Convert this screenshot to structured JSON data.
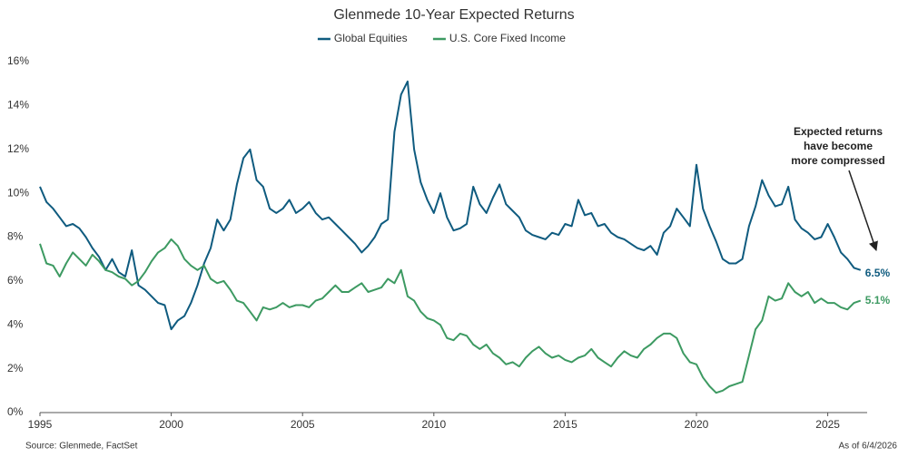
{
  "chart_data": {
    "type": "line",
    "title": "Glenmede 10-Year Expected Returns",
    "source": "Source: Glenmede, FactSet",
    "date_note": "As of 6/4/2026",
    "annotation": [
      "Expected returns",
      "have become",
      "more compressed"
    ],
    "x": [
      1995,
      1995.25,
      1995.5,
      1995.75,
      1996,
      1996.25,
      1996.5,
      1996.75,
      1997,
      1997.25,
      1997.5,
      1997.75,
      1998,
      1998.25,
      1998.5,
      1998.75,
      1999,
      1999.25,
      1999.5,
      1999.75,
      2000,
      2000.25,
      2000.5,
      2000.75,
      2001,
      2001.25,
      2001.5,
      2001.75,
      2002,
      2002.25,
      2002.5,
      2002.75,
      2003,
      2003.25,
      2003.5,
      2003.75,
      2004,
      2004.25,
      2004.5,
      2004.75,
      2005,
      2005.25,
      2005.5,
      2005.75,
      2006,
      2006.25,
      2006.5,
      2006.75,
      2007,
      2007.25,
      2007.5,
      2007.75,
      2008,
      2008.25,
      2008.5,
      2008.75,
      2009,
      2009.25,
      2009.5,
      2009.75,
      2010,
      2010.25,
      2010.5,
      2010.75,
      2011,
      2011.25,
      2011.5,
      2011.75,
      2012,
      2012.25,
      2012.5,
      2012.75,
      2013,
      2013.25,
      2013.5,
      2013.75,
      2014,
      2014.25,
      2014.5,
      2014.75,
      2015,
      2015.25,
      2015.5,
      2015.75,
      2016,
      2016.25,
      2016.5,
      2016.75,
      2017,
      2017.25,
      2017.5,
      2017.75,
      2018,
      2018.25,
      2018.5,
      2018.75,
      2019,
      2019.25,
      2019.5,
      2019.75,
      2020,
      2020.25,
      2020.5,
      2020.75,
      2021,
      2021.25,
      2021.5,
      2021.75,
      2022,
      2022.25,
      2022.5,
      2022.75,
      2023,
      2023.25,
      2023.5,
      2023.75,
      2024,
      2024.25,
      2024.5,
      2024.75,
      2025,
      2025.25,
      2025.5,
      2025.75,
      2026,
      2026.25
    ],
    "series": [
      {
        "name": "Global Equities",
        "color": "#0f5b7f",
        "end_label": "6.5%",
        "values": [
          10.3,
          9.6,
          9.3,
          8.9,
          8.5,
          8.6,
          8.4,
          8.0,
          7.5,
          7.1,
          6.5,
          7.0,
          6.4,
          6.2,
          7.4,
          5.8,
          5.6,
          5.3,
          5.0,
          4.9,
          3.8,
          4.2,
          4.4,
          5.0,
          5.8,
          6.8,
          7.5,
          8.8,
          8.3,
          8.8,
          10.4,
          11.6,
          12.0,
          10.6,
          10.3,
          9.3,
          9.1,
          9.3,
          9.7,
          9.1,
          9.3,
          9.6,
          9.1,
          8.8,
          8.9,
          8.6,
          8.3,
          8.0,
          7.7,
          7.3,
          7.6,
          8.0,
          8.6,
          8.8,
          12.8,
          14.5,
          15.1,
          12.0,
          10.5,
          9.7,
          9.1,
          10.0,
          8.9,
          8.3,
          8.4,
          8.6,
          10.3,
          9.5,
          9.1,
          9.8,
          10.4,
          9.5,
          9.2,
          8.9,
          8.3,
          8.1,
          8.0,
          7.9,
          8.2,
          8.1,
          8.6,
          8.5,
          9.7,
          9.0,
          9.1,
          8.5,
          8.6,
          8.2,
          8.0,
          7.9,
          7.7,
          7.5,
          7.4,
          7.6,
          7.2,
          8.2,
          8.5,
          9.3,
          8.9,
          8.5,
          11.3,
          9.3,
          8.5,
          7.8,
          7.0,
          6.8,
          6.8,
          7.0,
          8.5,
          9.4,
          10.6,
          9.9,
          9.4,
          9.5,
          10.3,
          8.8,
          8.4,
          8.2,
          7.9,
          8.0,
          8.6,
          8.0,
          7.3,
          7.0,
          6.6,
          6.5
        ]
      },
      {
        "name": "U.S. Core Fixed Income",
        "color": "#3d9a62",
        "end_label": "5.1%",
        "values": [
          7.7,
          6.8,
          6.7,
          6.2,
          6.8,
          7.3,
          7.0,
          6.7,
          7.2,
          6.9,
          6.5,
          6.4,
          6.2,
          6.1,
          5.8,
          6.0,
          6.4,
          6.9,
          7.3,
          7.5,
          7.9,
          7.6,
          7.0,
          6.7,
          6.5,
          6.7,
          6.1,
          5.9,
          6.0,
          5.6,
          5.1,
          5.0,
          4.6,
          4.2,
          4.8,
          4.7,
          4.8,
          5.0,
          4.8,
          4.9,
          4.9,
          4.8,
          5.1,
          5.2,
          5.5,
          5.8,
          5.5,
          5.5,
          5.7,
          5.9,
          5.5,
          5.6,
          5.7,
          6.1,
          5.9,
          6.5,
          5.3,
          5.1,
          4.6,
          4.3,
          4.2,
          4.0,
          3.4,
          3.3,
          3.6,
          3.5,
          3.1,
          2.9,
          3.1,
          2.7,
          2.5,
          2.2,
          2.3,
          2.1,
          2.5,
          2.8,
          3.0,
          2.7,
          2.5,
          2.6,
          2.4,
          2.3,
          2.5,
          2.6,
          2.9,
          2.5,
          2.3,
          2.1,
          2.5,
          2.8,
          2.6,
          2.5,
          2.9,
          3.1,
          3.4,
          3.6,
          3.6,
          3.4,
          2.7,
          2.3,
          2.2,
          1.6,
          1.2,
          0.9,
          1.0,
          1.2,
          1.3,
          1.4,
          2.6,
          3.8,
          4.2,
          5.3,
          5.1,
          5.2,
          5.9,
          5.5,
          5.3,
          5.5,
          5.0,
          5.2,
          5.0,
          5.0,
          4.8,
          4.7,
          5.0,
          5.1
        ]
      }
    ],
    "xlim": [
      1995,
      2026.5
    ],
    "xticks": [
      1995,
      2000,
      2005,
      2010,
      2015,
      2020,
      2025
    ],
    "ylim": [
      0,
      16
    ],
    "yticks": [
      {
        "value": 0,
        "label": "0%"
      },
      {
        "value": 2,
        "label": "2%"
      },
      {
        "value": 4,
        "label": "4%"
      },
      {
        "value": 6,
        "label": "6%"
      },
      {
        "value": 8,
        "label": "8%"
      },
      {
        "value": 10,
        "label": "10%"
      },
      {
        "value": 12,
        "label": "12%"
      },
      {
        "value": 14,
        "label": "14%"
      },
      {
        "value": 16,
        "label": "16%"
      }
    ],
    "grid": false
  }
}
